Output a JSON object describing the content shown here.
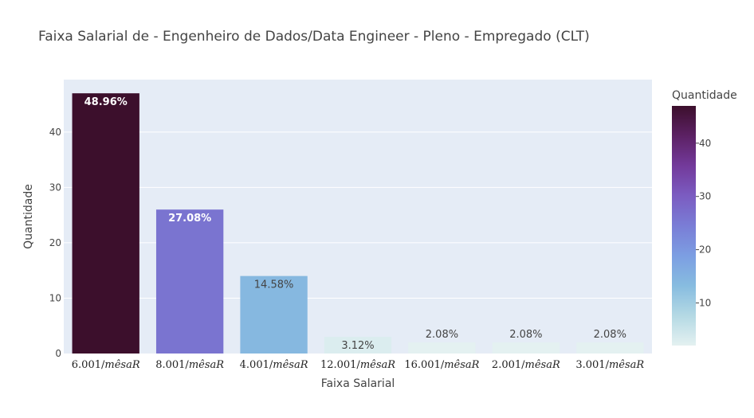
{
  "chart_data": {
    "type": "bar",
    "title": "Faixa Salarial de - Engenheiro de Dados/Data Engineer - Pleno - Empregado (CLT)",
    "xlabel": "Faixa Salarial",
    "ylabel": "Quantidade",
    "categories": [
      {
        "prefix": "6.001/",
        "suffix": "mêsaR"
      },
      {
        "prefix": "8.001/",
        "suffix": "mêsaR"
      },
      {
        "prefix": "4.001/",
        "suffix": "mêsaR"
      },
      {
        "prefix": "12.001/",
        "suffix": "mêsaR"
      },
      {
        "prefix": "16.001/",
        "suffix": "mêsaR"
      },
      {
        "prefix": "2.001/",
        "suffix": "mêsaR"
      },
      {
        "prefix": "3.001/",
        "suffix": "mêsaR"
      }
    ],
    "values": [
      47,
      26,
      14,
      3,
      2,
      2,
      2
    ],
    "labels": [
      "48.96%",
      "27.08%",
      "14.58%",
      "3.12%",
      "2.08%",
      "2.08%",
      "2.08%"
    ],
    "ylim": [
      0,
      49.47
    ],
    "yticks": [
      0,
      10,
      20,
      30,
      40
    ],
    "grid": true,
    "colorbar": {
      "title": "Quantidade",
      "range": [
        2,
        47
      ],
      "ticks": [
        10,
        20,
        30,
        40
      ],
      "colorscale": [
        "#e4f1f1",
        "#b4d9e4",
        "#87bce0",
        "#7c9ee2",
        "#7a7dd6",
        "#7b5cc1",
        "#733a9b",
        "#5c2164",
        "#3c0f2c"
      ]
    }
  }
}
